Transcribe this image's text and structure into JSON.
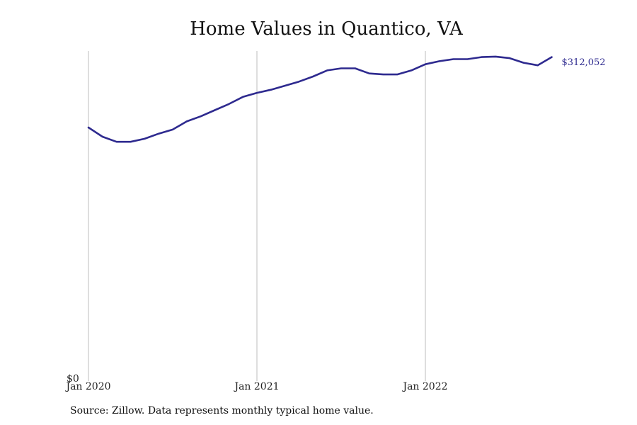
{
  "chart_data": {
    "type": "line",
    "title": "Home Values in Quantico, VA",
    "xlabel": "",
    "ylabel": "",
    "x_ticks": [
      "Jan 2020",
      "Jan 2021",
      "Jan 2022"
    ],
    "y_ticks": [
      "$0"
    ],
    "ylim": [
      0,
      318000
    ],
    "grid": "vertical",
    "line_color": "#2e2a8f",
    "end_label": "$312,052",
    "series": [
      {
        "x": [
          "2020-01",
          "2020-02",
          "2020-03",
          "2020-04",
          "2020-05",
          "2020-06",
          "2020-07",
          "2020-08",
          "2020-09",
          "2020-10",
          "2020-11",
          "2020-12",
          "2021-01",
          "2021-02",
          "2021-03",
          "2021-04",
          "2021-05",
          "2021-06",
          "2021-07",
          "2021-08",
          "2021-09",
          "2021-10",
          "2021-11",
          "2021-12",
          "2022-01",
          "2022-02",
          "2022-03",
          "2022-04",
          "2022-05",
          "2022-06",
          "2022-07",
          "2022-08",
          "2022-09",
          "2022-10"
        ],
        "values": [
          243000,
          234000,
          229000,
          229000,
          232000,
          237000,
          241000,
          249000,
          254000,
          260000,
          266000,
          273000,
          277000,
          280000,
          284000,
          288000,
          293000,
          299000,
          301000,
          301000,
          296000,
          295000,
          295000,
          299000,
          305000,
          308000,
          310000,
          310000,
          312000,
          312500,
          311000,
          306500,
          304000,
          312052
        ]
      }
    ]
  },
  "source": "Source: Zillow. Data represents monthly typical home value."
}
